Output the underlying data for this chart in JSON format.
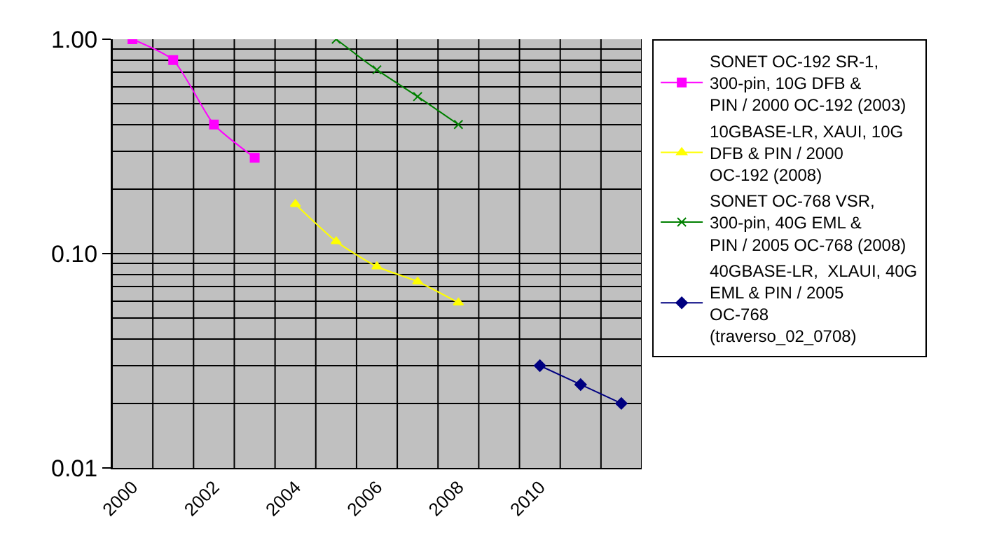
{
  "chart_data": {
    "type": "line",
    "log": "y",
    "categories": [
      "2000",
      null,
      "2002",
      null,
      "2004",
      null,
      "2006",
      null,
      "2008",
      null,
      "2010",
      null,
      null
    ],
    "ylim": [
      0.01,
      1
    ],
    "yticks": [
      {
        "value": 1,
        "label": "1.00"
      },
      {
        "value": 0.1,
        "label": "0.10"
      },
      {
        "value": 0.01,
        "label": "0.01"
      }
    ],
    "grid": true,
    "legend": "right",
    "series": [
      {
        "name": "SONET OC-192 SR-1, 300-pin, 10G DFB & PIN / 2000 OC-192 (2003)",
        "color": "#ff00ff",
        "marker": "square",
        "values": [
          1.0,
          0.8,
          0.4,
          0.28,
          null,
          null,
          null,
          null,
          null,
          null,
          null,
          null,
          null
        ]
      },
      {
        "name": "10GBASE-LR, XAUI, 10G DFB & PIN / 2000 OC-192 (2008)",
        "color": "#ffff00",
        "marker": "triangle",
        "values": [
          null,
          null,
          null,
          null,
          0.17,
          0.114,
          0.087,
          0.074,
          0.059,
          null,
          null,
          null,
          null
        ]
      },
      {
        "name": "SONET OC-768 VSR, 300-pin, 40G EML & PIN / 2005 OC-768 (2008)",
        "color": "#008000",
        "marker": "cross",
        "values": [
          null,
          null,
          null,
          null,
          null,
          1.0,
          0.72,
          0.54,
          0.4,
          null,
          null,
          null,
          null
        ]
      },
      {
        "name": "40GBASE-LR,  XLAUI, 40G EML & PIN / 2005 OC-768 (traverso_02_0708)",
        "color": "#000080",
        "marker": "diamond",
        "values": [
          null,
          null,
          null,
          null,
          null,
          null,
          null,
          null,
          null,
          null,
          0.03,
          0.0245,
          0.02
        ]
      }
    ]
  }
}
